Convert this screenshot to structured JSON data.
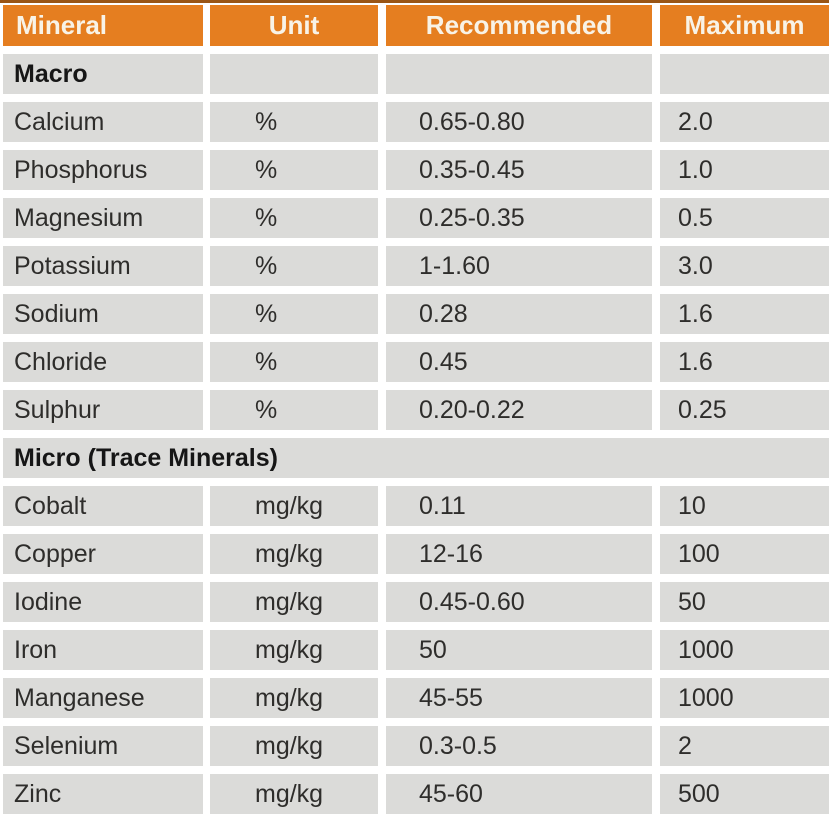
{
  "colors": {
    "header_bg": "#E57E20",
    "header_text": "#F8F3E7",
    "cell_bg": "#DBDBD9",
    "body_text": "#2E2D2B",
    "section_text": "#161616",
    "top_strip": "#9A5515",
    "page_bg": "#FFFFFF"
  },
  "chart_data": {
    "type": "table",
    "title": "",
    "columns": [
      {
        "key": "mineral",
        "label": "Mineral"
      },
      {
        "key": "unit",
        "label": "Unit"
      },
      {
        "key": "recommended",
        "label": "Recommended"
      },
      {
        "key": "maximum",
        "label": "Maximum"
      }
    ],
    "sections": [
      {
        "title": "Macro",
        "spans_full_width": false,
        "rows": [
          {
            "mineral": "Calcium",
            "unit": "%",
            "recommended": "0.65-0.80",
            "maximum": "2.0"
          },
          {
            "mineral": "Phosphorus",
            "unit": "%",
            "recommended": "0.35-0.45",
            "maximum": "1.0"
          },
          {
            "mineral": "Magnesium",
            "unit": "%",
            "recommended": "0.25-0.35",
            "maximum": "0.5"
          },
          {
            "mineral": "Potassium",
            "unit": "%",
            "recommended": "1-1.60",
            "maximum": "3.0"
          },
          {
            "mineral": "Sodium",
            "unit": "%",
            "recommended": "0.28",
            "maximum": "1.6"
          },
          {
            "mineral": "Chloride",
            "unit": "%",
            "recommended": "0.45",
            "maximum": "1.6"
          },
          {
            "mineral": "Sulphur",
            "unit": "%",
            "recommended": "0.20-0.22",
            "maximum": "0.25"
          }
        ]
      },
      {
        "title": "Micro (Trace Minerals)",
        "spans_full_width": true,
        "rows": [
          {
            "mineral": "Cobalt",
            "unit": "mg/kg",
            "recommended": "0.11",
            "maximum": "10"
          },
          {
            "mineral": "Copper",
            "unit": "mg/kg",
            "recommended": "12-16",
            "maximum": "100"
          },
          {
            "mineral": "Iodine",
            "unit": "mg/kg",
            "recommended": "0.45-0.60",
            "maximum": "50"
          },
          {
            "mineral": "Iron",
            "unit": "mg/kg",
            "recommended": "50",
            "maximum": "1000"
          },
          {
            "mineral": "Manganese",
            "unit": "mg/kg",
            "recommended": "45-55",
            "maximum": "1000"
          },
          {
            "mineral": "Selenium",
            "unit": "mg/kg",
            "recommended": "0.3-0.5",
            "maximum": "2"
          },
          {
            "mineral": "Zinc",
            "unit": "mg/kg",
            "recommended": "45-60",
            "maximum": "500"
          }
        ]
      }
    ]
  }
}
